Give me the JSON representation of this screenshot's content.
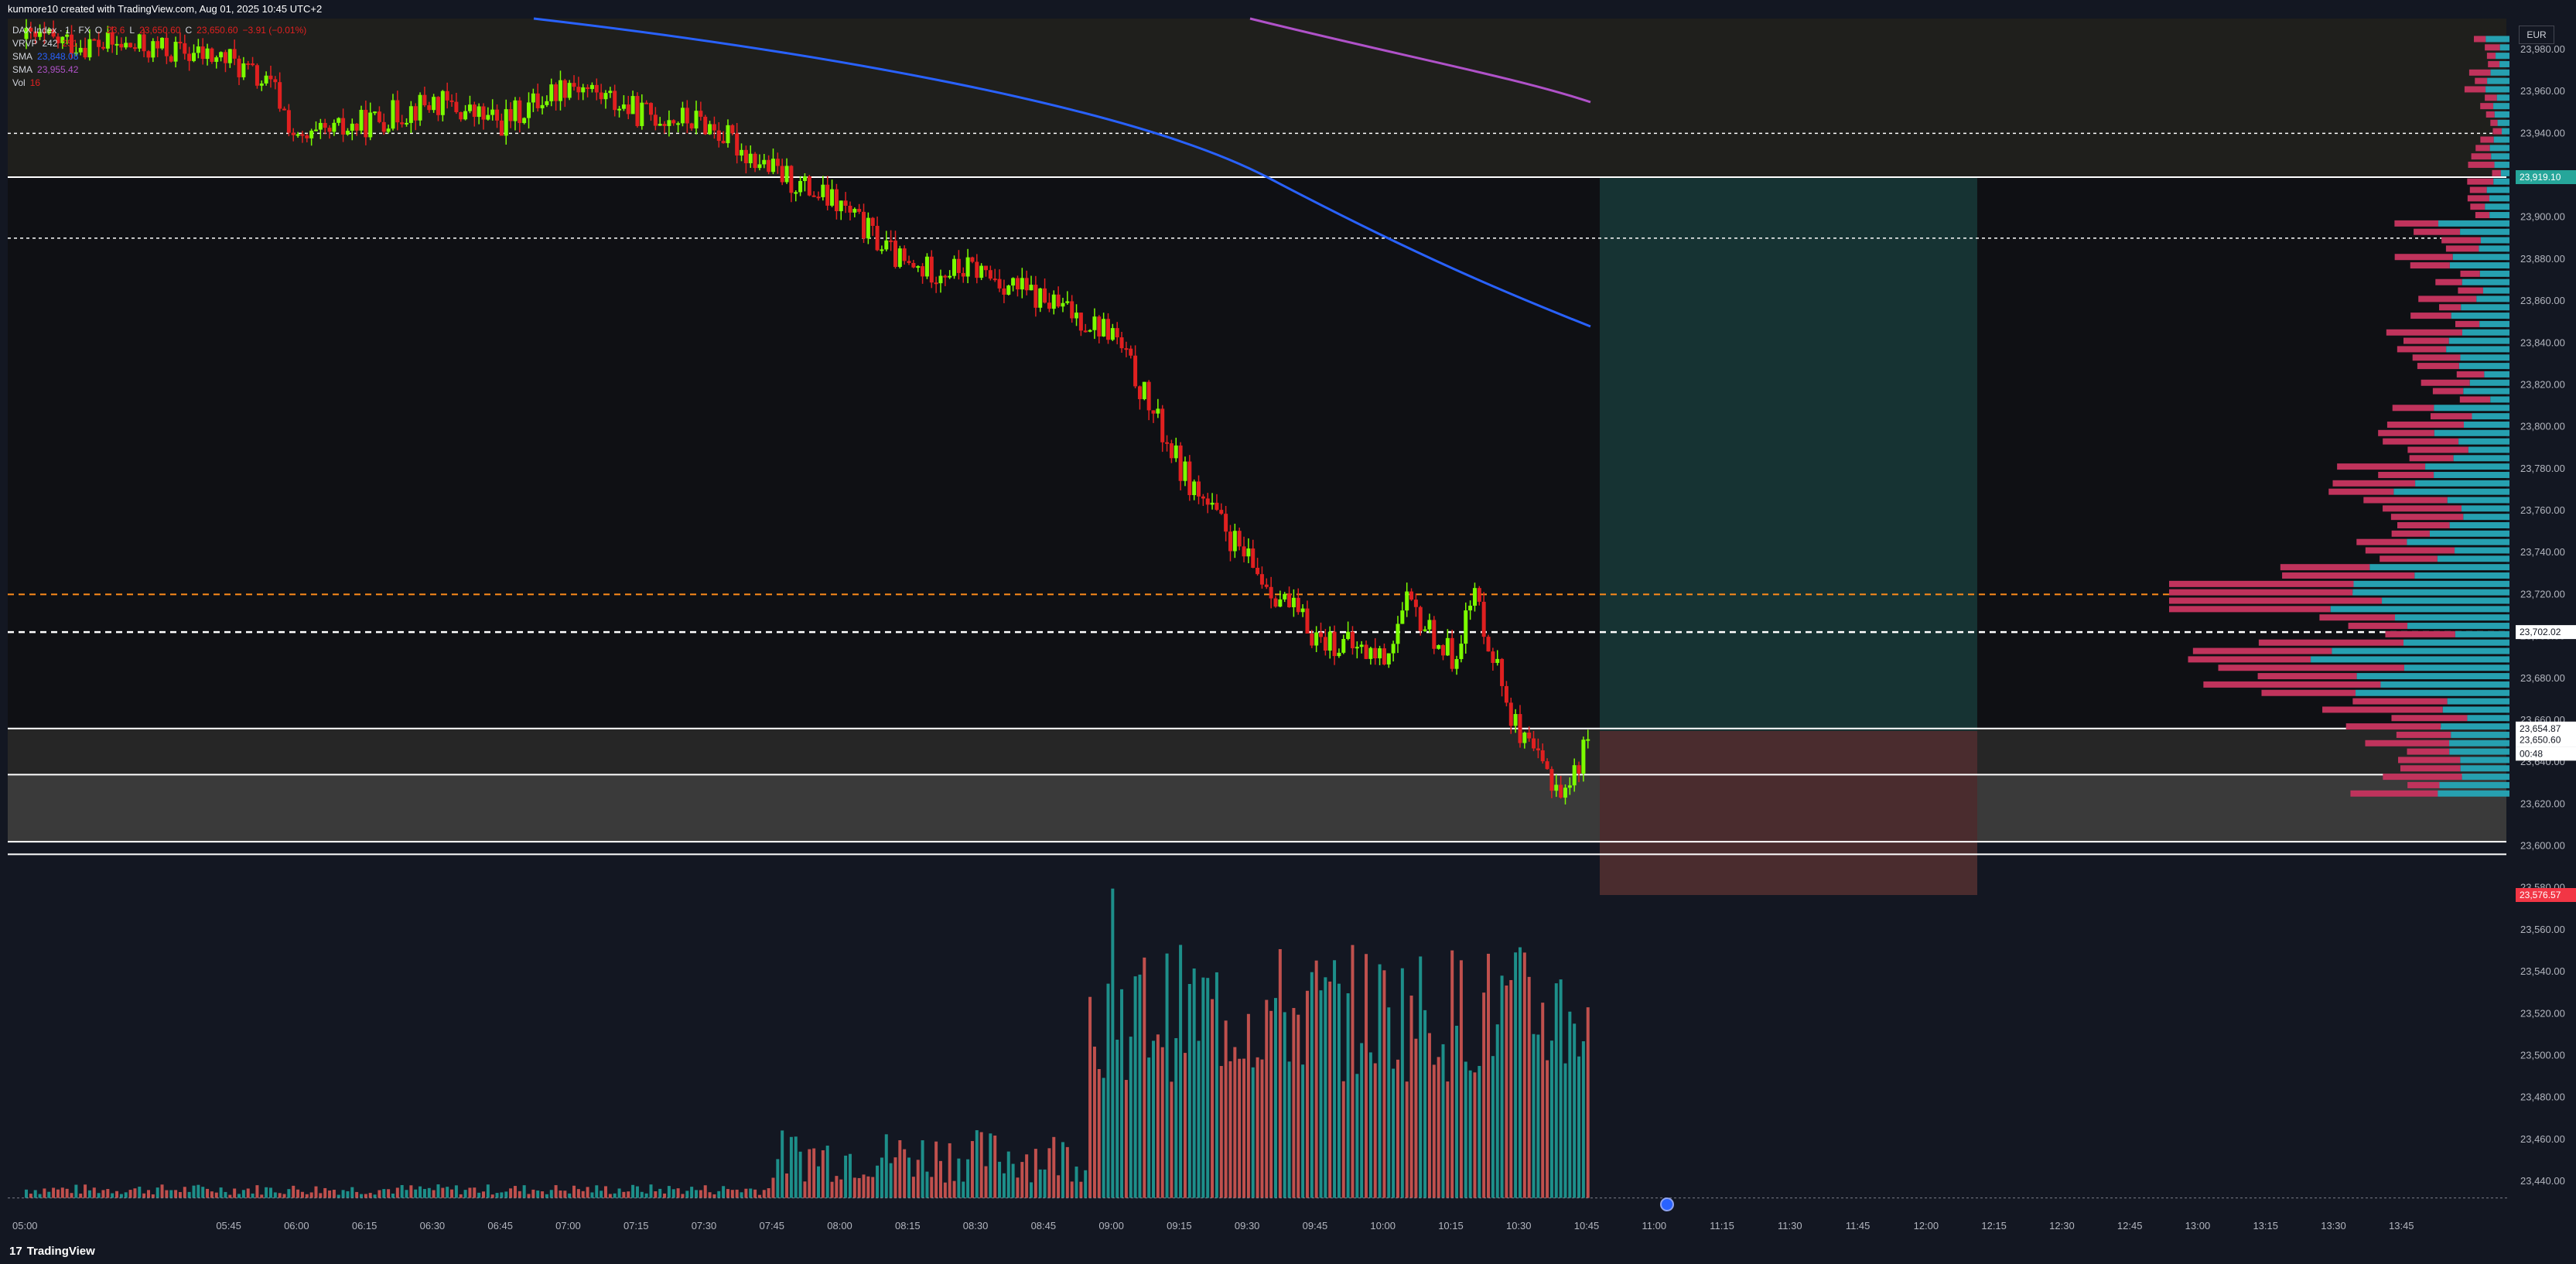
{
  "credit": "kunmore10 created with TradingView.com, Aug 01, 2025 10:45 UTC+2",
  "legend": {
    "symbol": "DAX Index · 1 · FX",
    "ohlc_prefix_o": "O",
    "ohlc_o": "23,6",
    "ohlc_l": "L",
    "ohlc_l_val": "23,650.60",
    "ohlc_c": "C",
    "ohlc_c_val": "23,650.60",
    "ohlc_chg": "−3.91 (−0.01%)",
    "vrvp_label": "VRVP",
    "vrvp_a": "242",
    "vrvp_b": "251",
    "sma1_label": "SMA",
    "sma1_val": "23,848.08",
    "sma2_label": "SMA",
    "sma2_val": "23,955.42",
    "vol_label": "Vol",
    "vol_val": "16"
  },
  "currency": "EUR",
  "price_axis": {
    "ticks": [
      "23,980.00",
      "23,960.00",
      "23,940.00",
      "23,920.00",
      "23,900.00",
      "23,880.00",
      "23,860.00",
      "23,840.00",
      "23,820.00",
      "23,800.00",
      "23,780.00",
      "23,760.00",
      "23,740.00",
      "23,720.00",
      "23,700.00",
      "23,680.00",
      "23,660.00",
      "23,640.00",
      "23,620.00",
      "23,600.00",
      "23,580.00",
      "23,560.00",
      "23,540.00",
      "23,520.00",
      "23,500.00",
      "23,480.00",
      "23,460.00",
      "23,440.00"
    ],
    "label_sma": "23,919.10",
    "label_level": "23,702.02",
    "label_high": "23,654.87",
    "label_price": "23,650.60",
    "label_countdown": "00:48",
    "label_stop": "23,576.57",
    "color_sma_label": "#26a69a",
    "color_stop_label": "#f23645"
  },
  "time_axis": {
    "ticks": [
      "05:00",
      "05:45",
      "06:00",
      "06:15",
      "06:30",
      "06:45",
      "07:00",
      "07:15",
      "07:30",
      "07:45",
      "08:00",
      "08:15",
      "08:30",
      "08:45",
      "09:00",
      "09:15",
      "09:30",
      "09:45",
      "10:00",
      "10:15",
      "10:30",
      "10:45",
      "11:00",
      "11:15",
      "11:30",
      "11:45",
      "12:00",
      "12:15",
      "12:30",
      "12:45",
      "13:00",
      "13:15",
      "13:30",
      "13:45"
    ]
  },
  "footer": {
    "brand": "TradingView",
    "mark": "17"
  },
  "colors": {
    "bg": "#131722",
    "up": "#7cfc00",
    "down": "#e02020",
    "sma_blue": "#2962ff",
    "sma_purple": "#b052c9",
    "vp_up": "#26a0b0",
    "vp_down": "#c0335c",
    "vol_up": "#1d8f8a",
    "vol_down": "#c0504d",
    "target_zone": "#163333",
    "stop_zone": "#4a2c2e"
  },
  "chart_data": {
    "type": "candlestick",
    "symbol": "DAX Index",
    "interval": "1",
    "y_range": [
      23430,
      23990
    ],
    "x_range": [
      "05:00",
      "13:50"
    ],
    "horizontal_levels": [
      {
        "price": 23919.1,
        "style": "solid"
      },
      {
        "price": 23890,
        "style": "dotted"
      },
      {
        "price": 23940,
        "style": "dotted"
      },
      {
        "price": 23720,
        "style": "dashed-orange"
      },
      {
        "price": 23702,
        "style": "dashed-white"
      },
      {
        "price": 23656,
        "style": "solid"
      },
      {
        "price": 23634,
        "style": "solid"
      },
      {
        "price": 23602,
        "style": "solid"
      },
      {
        "price": 23596,
        "style": "solid"
      }
    ],
    "path_points": [
      {
        "t": "05:00",
        "p": 23985
      },
      {
        "t": "05:30",
        "p": 23980
      },
      {
        "t": "05:45",
        "p": 23975
      },
      {
        "t": "05:55",
        "p": 23960
      },
      {
        "t": "06:00",
        "p": 23935
      },
      {
        "t": "06:15",
        "p": 23945
      },
      {
        "t": "06:30",
        "p": 23955
      },
      {
        "t": "06:45",
        "p": 23945
      },
      {
        "t": "07:00",
        "p": 23965
      },
      {
        "t": "07:15",
        "p": 23950
      },
      {
        "t": "07:30",
        "p": 23945
      },
      {
        "t": "07:45",
        "p": 23922
      },
      {
        "t": "08:00",
        "p": 23905
      },
      {
        "t": "08:15",
        "p": 23875
      },
      {
        "t": "08:30",
        "p": 23875
      },
      {
        "t": "08:45",
        "p": 23860
      },
      {
        "t": "09:00",
        "p": 23845
      },
      {
        "t": "09:15",
        "p": 23780
      },
      {
        "t": "09:30",
        "p": 23735
      },
      {
        "t": "09:45",
        "p": 23700
      },
      {
        "t": "10:00",
        "p": 23690
      },
      {
        "t": "10:05",
        "p": 23715
      },
      {
        "t": "10:15",
        "p": 23690
      },
      {
        "t": "10:20",
        "p": 23720
      },
      {
        "t": "10:30",
        "p": 23650
      },
      {
        "t": "10:40",
        "p": 23625
      },
      {
        "t": "10:45",
        "p": 23651
      }
    ],
    "volume_peak_time": "09:00",
    "volume_peak_value": 100,
    "position": {
      "entry": 23654.87,
      "target": 23919.1,
      "stop": 23576.57
    }
  }
}
